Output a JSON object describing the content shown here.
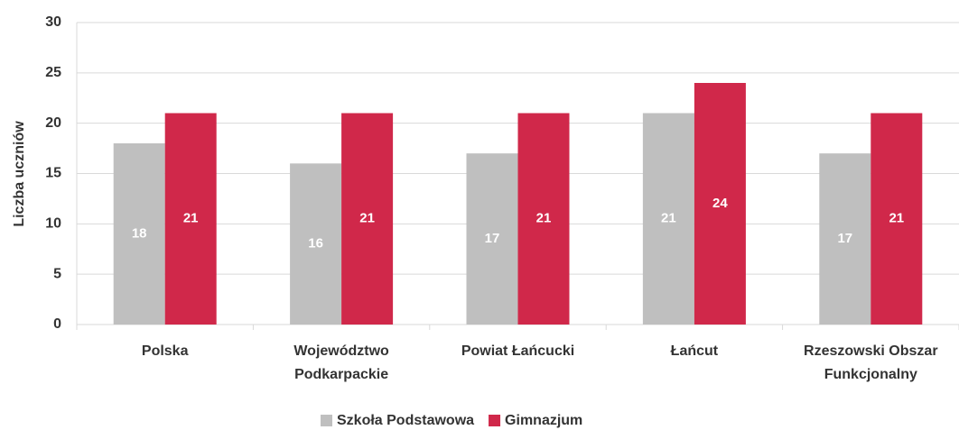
{
  "chart_data": {
    "type": "bar",
    "y_label": "Liczba uczniów",
    "categories": [
      "Polska",
      "Województwo Podkarpackie",
      "Powiat Łańcucki",
      "Łańcut",
      "Rzeszowski Obszar Funkcjonalny"
    ],
    "series": [
      {
        "name": "Szkoła Podstawowa",
        "color": "#bfbfbf",
        "values": [
          18,
          16,
          17,
          21,
          17
        ]
      },
      {
        "name": "Gimnazjum",
        "color": "#d0284a",
        "values": [
          21,
          21,
          21,
          24,
          21
        ]
      }
    ],
    "ylim": [
      0,
      30
    ],
    "yticks": [
      0,
      5,
      10,
      15,
      20,
      25,
      30
    ],
    "grid": true,
    "legend": "bottom"
  }
}
